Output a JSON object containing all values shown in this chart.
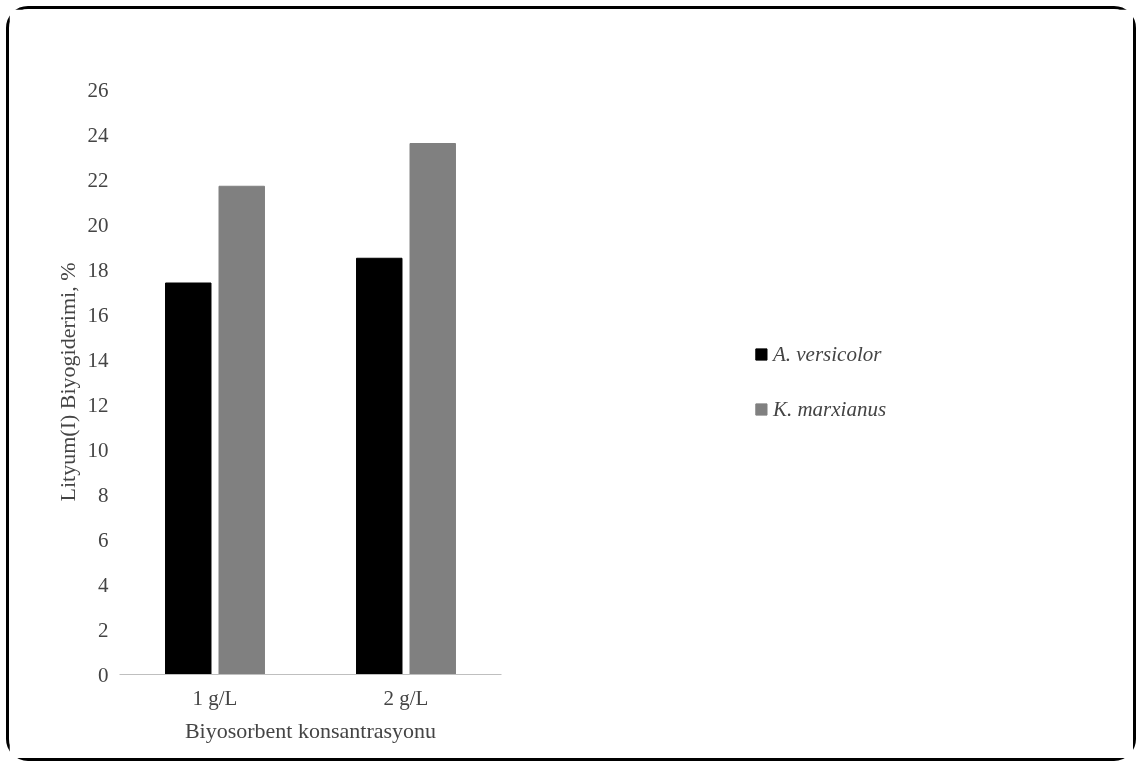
{
  "chart_data": {
    "type": "bar",
    "xlabel": "Biyosorbent konsantrasyonu",
    "ylabel": "Lityum(I) Biyogiderimi, %",
    "categories": [
      "1 g/L",
      "2 g/L"
    ],
    "series": [
      {
        "name": "A. versicolor",
        "color": "#000000",
        "values": [
          17.4,
          18.5
        ]
      },
      {
        "name": "K. marxianus",
        "color": "#808080",
        "values": [
          21.7,
          23.6
        ]
      }
    ],
    "ylim": [
      0,
      26
    ],
    "yticks": [
      0,
      2,
      4,
      6,
      8,
      10,
      12,
      14,
      16,
      18,
      20,
      22,
      24,
      26
    ],
    "grid": false,
    "legend": "right"
  }
}
